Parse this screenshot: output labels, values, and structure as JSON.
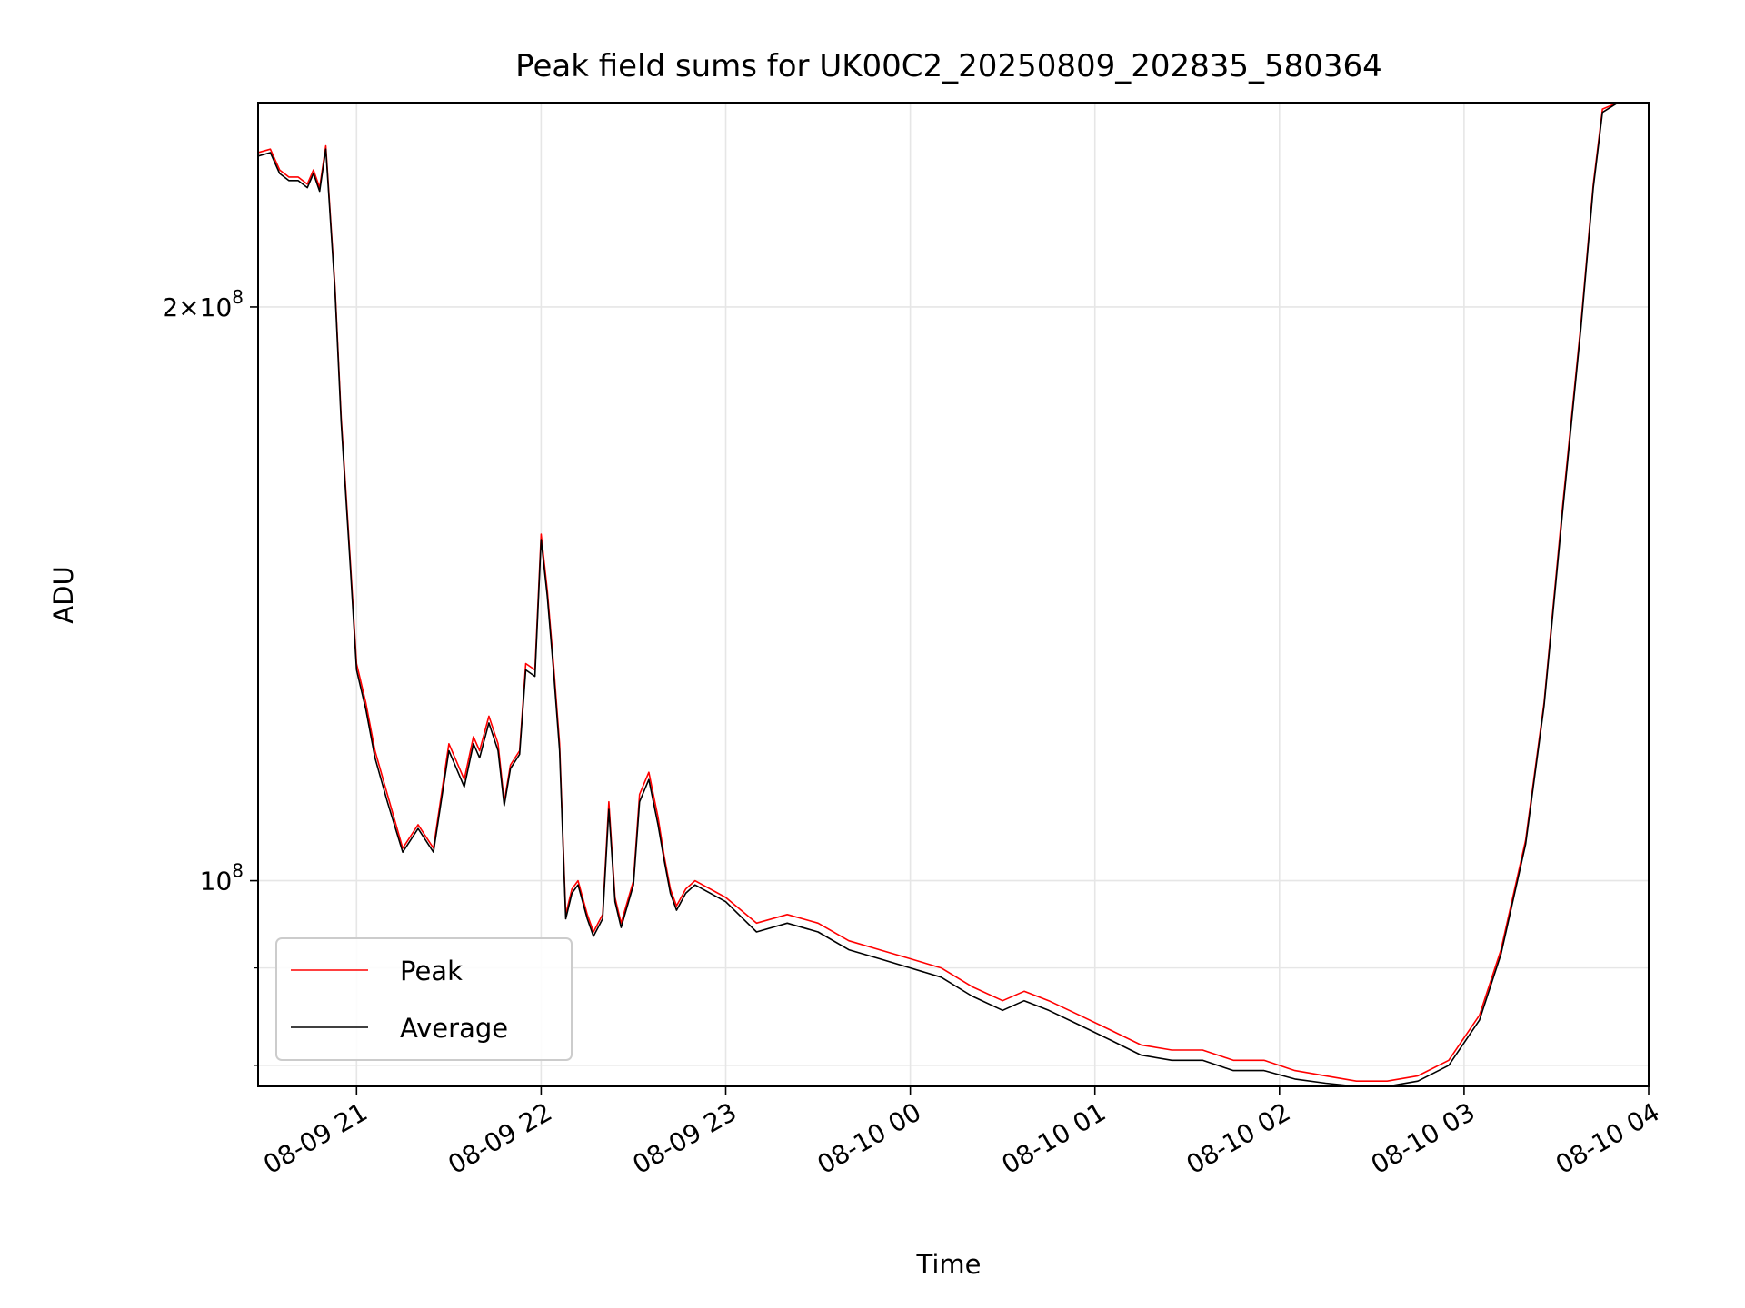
{
  "chart_data": {
    "type": "line",
    "title": "Peak field sums for UK00C2_20250809_202835_580364",
    "xlabel": "Time",
    "ylabel": "ADU",
    "yscale": "log",
    "ylim": [
      78000000,
      256000000
    ],
    "xlim": [
      "2025-08-09T20:28",
      "2025-08-10T04:00"
    ],
    "grid": true,
    "legend": "lower-left",
    "x_ticks": [
      {
        "t": "2025-08-09T21:00",
        "label": "08-09 21"
      },
      {
        "t": "2025-08-09T22:00",
        "label": "08-09 22"
      },
      {
        "t": "2025-08-09T23:00",
        "label": "08-09 23"
      },
      {
        "t": "2025-08-10T00:00",
        "label": "08-10 00"
      },
      {
        "t": "2025-08-10T01:00",
        "label": "08-10 01"
      },
      {
        "t": "2025-08-10T02:00",
        "label": "08-10 02"
      },
      {
        "t": "2025-08-10T03:00",
        "label": "08-10 03"
      },
      {
        "t": "2025-08-10T04:00",
        "label": "08-10 04"
      }
    ],
    "y_ticks": [
      {
        "value": 100000000,
        "base": "10",
        "exp": "8"
      },
      {
        "value": 200000000,
        "mant": "2",
        "base": "10",
        "exp": "8"
      }
    ],
    "y_minor_ticks": [
      80000000,
      90000000
    ],
    "series": [
      {
        "name": "Peak",
        "color": "#ff0000",
        "x": [
          "2025-08-09T20:28",
          "2025-08-09T20:32",
          "2025-08-09T20:35",
          "2025-08-09T20:38",
          "2025-08-09T20:41",
          "2025-08-09T20:44",
          "2025-08-09T20:46",
          "2025-08-09T20:48",
          "2025-08-09T20:50",
          "2025-08-09T20:53",
          "2025-08-09T20:55",
          "2025-08-09T20:58",
          "2025-08-09T21:00",
          "2025-08-09T21:03",
          "2025-08-09T21:06",
          "2025-08-09T21:10",
          "2025-08-09T21:15",
          "2025-08-09T21:20",
          "2025-08-09T21:25",
          "2025-08-09T21:30",
          "2025-08-09T21:32",
          "2025-08-09T21:35",
          "2025-08-09T21:38",
          "2025-08-09T21:40",
          "2025-08-09T21:43",
          "2025-08-09T21:46",
          "2025-08-09T21:48",
          "2025-08-09T21:50",
          "2025-08-09T21:53",
          "2025-08-09T21:55",
          "2025-08-09T21:58",
          "2025-08-09T22:00",
          "2025-08-09T22:02",
          "2025-08-09T22:04",
          "2025-08-09T22:06",
          "2025-08-09T22:08",
          "2025-08-09T22:10",
          "2025-08-09T22:12",
          "2025-08-09T22:15",
          "2025-08-09T22:17",
          "2025-08-09T22:20",
          "2025-08-09T22:22",
          "2025-08-09T22:24",
          "2025-08-09T22:26",
          "2025-08-09T22:30",
          "2025-08-09T22:32",
          "2025-08-09T22:35",
          "2025-08-09T22:38",
          "2025-08-09T22:40",
          "2025-08-09T22:42",
          "2025-08-09T22:44",
          "2025-08-09T22:47",
          "2025-08-09T22:50",
          "2025-08-09T23:00",
          "2025-08-09T23:10",
          "2025-08-09T23:20",
          "2025-08-09T23:30",
          "2025-08-09T23:40",
          "2025-08-09T23:50",
          "2025-08-10T00:00",
          "2025-08-10T00:10",
          "2025-08-10T00:20",
          "2025-08-10T00:30",
          "2025-08-10T00:37",
          "2025-08-10T00:45",
          "2025-08-10T00:55",
          "2025-08-10T01:05",
          "2025-08-10T01:15",
          "2025-08-10T01:25",
          "2025-08-10T01:35",
          "2025-08-10T01:45",
          "2025-08-10T01:55",
          "2025-08-10T02:05",
          "2025-08-10T02:15",
          "2025-08-10T02:25",
          "2025-08-10T02:35",
          "2025-08-10T02:45",
          "2025-08-10T02:55",
          "2025-08-10T03:05",
          "2025-08-10T03:12",
          "2025-08-10T03:20",
          "2025-08-10T03:26",
          "2025-08-10T03:32",
          "2025-08-10T03:38",
          "2025-08-10T03:42",
          "2025-08-10T03:45",
          "2025-08-10T03:50",
          "2025-08-10T04:00"
        ],
        "y": [
          241000000,
          242000000,
          236000000,
          234000000,
          234000000,
          232000000,
          236000000,
          231000000,
          243000000,
          205000000,
          175000000,
          147000000,
          130000000,
          124000000,
          117000000,
          111000000,
          104000000,
          107000000,
          104000000,
          118000000,
          116000000,
          113000000,
          119000000,
          117000000,
          122000000,
          118000000,
          110000000,
          115000000,
          117000000,
          130000000,
          129000000,
          152000000,
          142000000,
          130000000,
          118000000,
          96000000,
          99000000,
          100000000,
          96000000,
          94000000,
          96000000,
          110000000,
          98000000,
          95000000,
          100000000,
          111000000,
          114000000,
          108000000,
          103000000,
          99000000,
          97000000,
          99000000,
          100000000,
          98000000,
          95000000,
          96000000,
          95000000,
          93000000,
          92000000,
          91000000,
          90000000,
          88000000,
          86500000,
          87500000,
          86500000,
          85000000,
          83500000,
          82000000,
          81500000,
          81500000,
          80500000,
          80500000,
          79500000,
          79000000,
          78500000,
          78500000,
          79000000,
          80500000,
          85000000,
          92000000,
          105000000,
          124000000,
          157000000,
          196000000,
          232000000,
          254000000,
          256000000,
          256000000
        ]
      },
      {
        "name": "Average",
        "color": "#000000",
        "x": [
          "2025-08-09T20:28",
          "2025-08-09T20:32",
          "2025-08-09T20:35",
          "2025-08-09T20:38",
          "2025-08-09T20:41",
          "2025-08-09T20:44",
          "2025-08-09T20:46",
          "2025-08-09T20:48",
          "2025-08-09T20:50",
          "2025-08-09T20:53",
          "2025-08-09T20:55",
          "2025-08-09T20:58",
          "2025-08-09T21:00",
          "2025-08-09T21:03",
          "2025-08-09T21:06",
          "2025-08-09T21:10",
          "2025-08-09T21:15",
          "2025-08-09T21:20",
          "2025-08-09T21:25",
          "2025-08-09T21:30",
          "2025-08-09T21:32",
          "2025-08-09T21:35",
          "2025-08-09T21:38",
          "2025-08-09T21:40",
          "2025-08-09T21:43",
          "2025-08-09T21:46",
          "2025-08-09T21:48",
          "2025-08-09T21:50",
          "2025-08-09T21:53",
          "2025-08-09T21:55",
          "2025-08-09T21:58",
          "2025-08-09T22:00",
          "2025-08-09T22:02",
          "2025-08-09T22:04",
          "2025-08-09T22:06",
          "2025-08-09T22:08",
          "2025-08-09T22:10",
          "2025-08-09T22:12",
          "2025-08-09T22:15",
          "2025-08-09T22:17",
          "2025-08-09T22:20",
          "2025-08-09T22:22",
          "2025-08-09T22:24",
          "2025-08-09T22:26",
          "2025-08-09T22:30",
          "2025-08-09T22:32",
          "2025-08-09T22:35",
          "2025-08-09T22:38",
          "2025-08-09T22:40",
          "2025-08-09T22:42",
          "2025-08-09T22:44",
          "2025-08-09T22:47",
          "2025-08-09T22:50",
          "2025-08-09T23:00",
          "2025-08-09T23:10",
          "2025-08-09T23:20",
          "2025-08-09T23:30",
          "2025-08-09T23:40",
          "2025-08-09T23:50",
          "2025-08-10T00:00",
          "2025-08-10T00:10",
          "2025-08-10T00:20",
          "2025-08-10T00:30",
          "2025-08-10T00:37",
          "2025-08-10T00:45",
          "2025-08-10T00:55",
          "2025-08-10T01:05",
          "2025-08-10T01:15",
          "2025-08-10T01:25",
          "2025-08-10T01:35",
          "2025-08-10T01:45",
          "2025-08-10T01:55",
          "2025-08-10T02:05",
          "2025-08-10T02:15",
          "2025-08-10T02:25",
          "2025-08-10T02:35",
          "2025-08-10T02:45",
          "2025-08-10T02:55",
          "2025-08-10T03:05",
          "2025-08-10T03:12",
          "2025-08-10T03:20",
          "2025-08-10T03:26",
          "2025-08-10T03:32",
          "2025-08-10T03:38",
          "2025-08-10T03:42",
          "2025-08-10T03:45",
          "2025-08-10T03:50",
          "2025-08-10T04:00"
        ],
        "y": [
          240000000,
          241000000,
          235000000,
          233000000,
          233000000,
          231000000,
          235000000,
          230000000,
          242000000,
          204000000,
          174000000,
          146000000,
          129000000,
          123000000,
          116000000,
          110000000,
          103500000,
          106500000,
          103500000,
          117000000,
          115000000,
          112000000,
          118000000,
          116000000,
          121000000,
          117000000,
          109500000,
          114500000,
          116500000,
          129000000,
          128000000,
          151000000,
          141000000,
          129000000,
          117000000,
          95500000,
          98500000,
          99500000,
          95500000,
          93500000,
          95500000,
          109000000,
          97500000,
          94500000,
          99500000,
          110000000,
          113000000,
          107000000,
          102500000,
          98500000,
          96500000,
          98500000,
          99500000,
          97500000,
          94000000,
          95000000,
          94000000,
          92000000,
          91000000,
          90000000,
          89000000,
          87000000,
          85500000,
          86500000,
          85500000,
          84000000,
          82500000,
          81000000,
          80500000,
          80500000,
          79500000,
          79500000,
          78700000,
          78300000,
          78000000,
          78000000,
          78500000,
          80000000,
          84500000,
          91500000,
          104500000,
          123500000,
          156000000,
          195000000,
          231000000,
          253000000,
          256000000,
          256000000
        ]
      }
    ]
  }
}
